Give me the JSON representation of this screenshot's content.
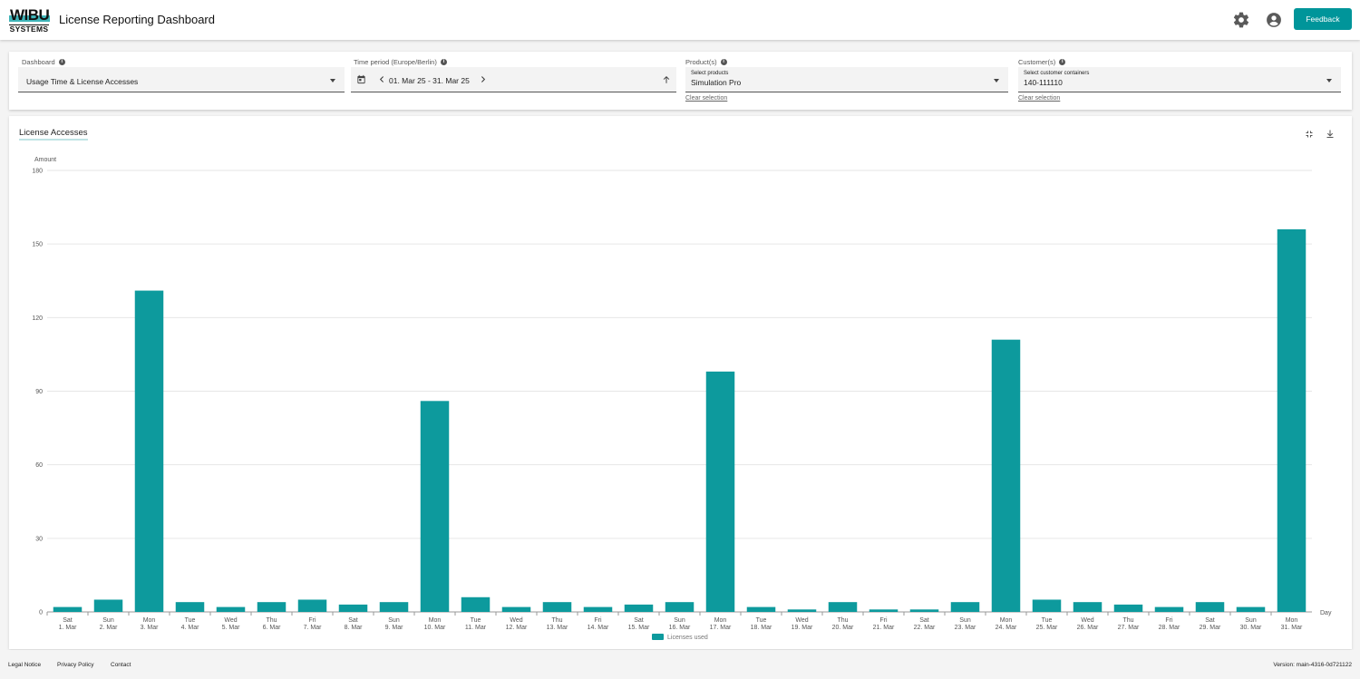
{
  "app": {
    "logo_top": "WIBU",
    "logo_bottom": "SYSTEMS",
    "title": "License Reporting Dashboard",
    "feedback_label": "Feedback"
  },
  "icons": {
    "settings": "gear-icon",
    "account": "account-circle-icon",
    "calendar": "calendar-icon",
    "prev": "chevron-left-icon",
    "next": "chevron-right-icon",
    "sort": "arrow-up-icon",
    "collapse": "fullscreen-exit-icon",
    "download": "download-icon",
    "dropdown": "caret-down-icon",
    "info": "info-icon"
  },
  "colors": {
    "accent": "#00959a",
    "bar": "#0d9a9d"
  },
  "filters": {
    "dashboard": {
      "label": "Dashboard",
      "value": "Usage Time & License Accesses"
    },
    "time": {
      "label": "Time period (Europe/Berlin)",
      "value": "01. Mar 25 - 31. Mar 25"
    },
    "products": {
      "label": "Product(s)",
      "sub_label": "Select products",
      "value": "Simulation Pro",
      "clear": "Clear selection"
    },
    "customers": {
      "label": "Customer(s)",
      "sub_label": "Select customer containers",
      "value": "140-111110",
      "clear": "Clear selection"
    }
  },
  "chart_card": {
    "title": "License Accesses"
  },
  "chart_data": {
    "type": "bar",
    "title": "License Accesses",
    "ylabel": "Amount",
    "xlabel": "Day",
    "ylim": [
      0,
      180
    ],
    "yticks": [
      0,
      30,
      60,
      90,
      120,
      150,
      180
    ],
    "grid": true,
    "legend_position": "bottom",
    "categories": [
      [
        "Sat",
        "1. Mar"
      ],
      [
        "Sun",
        "2. Mar"
      ],
      [
        "Mon",
        "3. Mar"
      ],
      [
        "Tue",
        "4. Mar"
      ],
      [
        "Wed",
        "5. Mar"
      ],
      [
        "Thu",
        "6. Mar"
      ],
      [
        "Fri",
        "7. Mar"
      ],
      [
        "Sat",
        "8. Mar"
      ],
      [
        "Sun",
        "9. Mar"
      ],
      [
        "Mon",
        "10. Mar"
      ],
      [
        "Tue",
        "11. Mar"
      ],
      [
        "Wed",
        "12. Mar"
      ],
      [
        "Thu",
        "13. Mar"
      ],
      [
        "Fri",
        "14. Mar"
      ],
      [
        "Sat",
        "15. Mar"
      ],
      [
        "Sun",
        "16. Mar"
      ],
      [
        "Mon",
        "17. Mar"
      ],
      [
        "Tue",
        "18. Mar"
      ],
      [
        "Wed",
        "19. Mar"
      ],
      [
        "Thu",
        "20. Mar"
      ],
      [
        "Fri",
        "21. Mar"
      ],
      [
        "Sat",
        "22. Mar"
      ],
      [
        "Sun",
        "23. Mar"
      ],
      [
        "Mon",
        "24. Mar"
      ],
      [
        "Tue",
        "25. Mar"
      ],
      [
        "Wed",
        "26. Mar"
      ],
      [
        "Thu",
        "27. Mar"
      ],
      [
        "Fri",
        "28. Mar"
      ],
      [
        "Sat",
        "29. Mar"
      ],
      [
        "Sun",
        "30. Mar"
      ],
      [
        "Mon",
        "31. Mar"
      ]
    ],
    "series": [
      {
        "name": "Licenses used",
        "values": [
          2,
          5,
          131,
          4,
          2,
          4,
          5,
          3,
          4,
          86,
          6,
          2,
          4,
          2,
          3,
          4,
          98,
          2,
          1,
          4,
          1,
          1,
          4,
          111,
          5,
          4,
          3,
          2,
          4,
          2,
          156
        ]
      }
    ]
  },
  "footer": {
    "legal": "Legal Notice",
    "privacy": "Privacy Policy",
    "contact": "Contact",
    "version": "Version: main-4316-0d721122"
  }
}
